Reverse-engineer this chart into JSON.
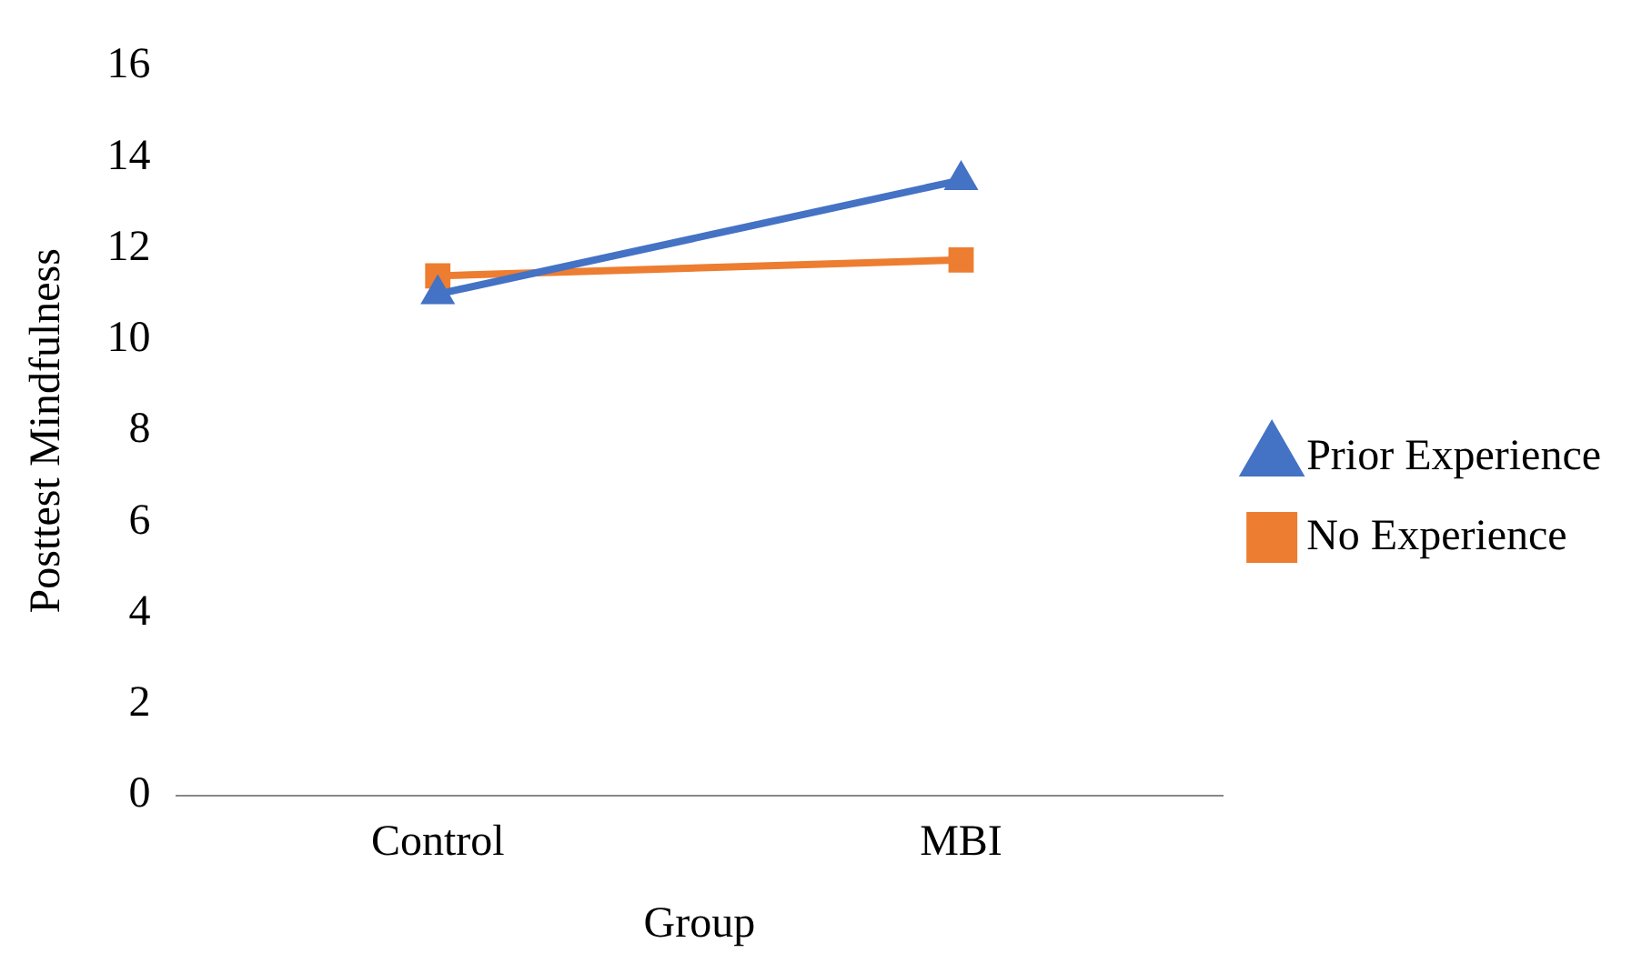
{
  "chart_data": {
    "type": "line",
    "xlabel": "Group",
    "ylabel": "Posttest Mindfulness",
    "categories": [
      "Control",
      "MBI"
    ],
    "series": [
      {
        "name": "Prior Experience",
        "color": "#4472c4",
        "values": [
          11.0,
          13.5
        ],
        "marker": "triangle"
      },
      {
        "name": "No Experience",
        "color": "#ed7d31",
        "values": [
          11.4,
          11.75
        ],
        "marker": "square"
      }
    ],
    "ylim": [
      0,
      16
    ],
    "yticks": [
      0,
      2,
      4,
      6,
      8,
      10,
      12,
      14,
      16
    ],
    "grid": false,
    "legend": "right",
    "line_style": "solid"
  }
}
